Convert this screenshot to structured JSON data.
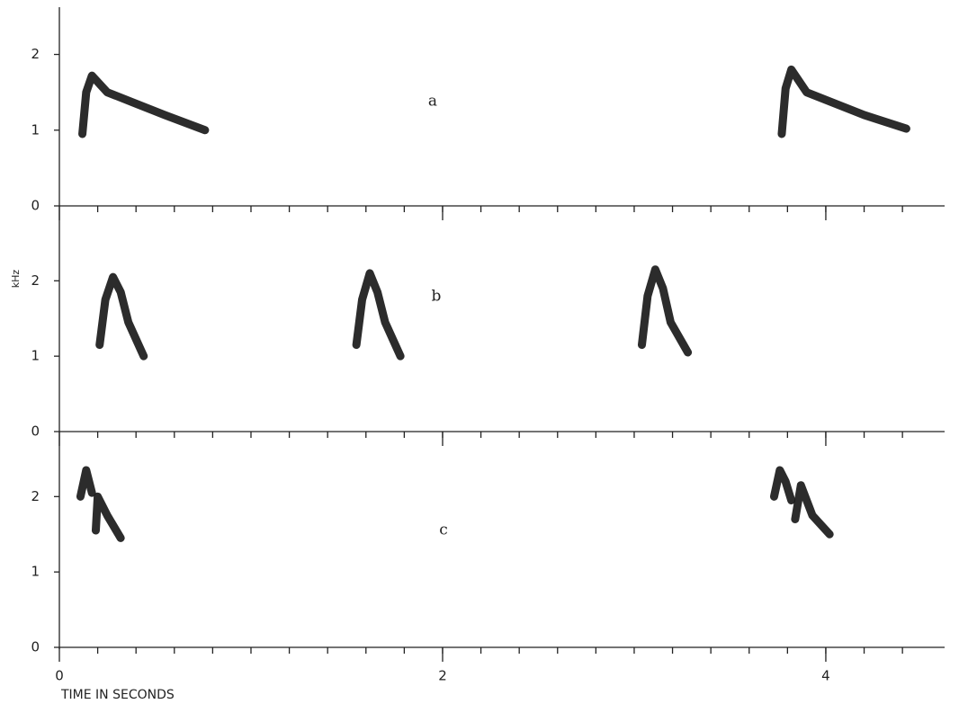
{
  "chart_data": [
    {
      "type": "line",
      "label": "a",
      "xlim": [
        0,
        4.62
      ],
      "ylim": [
        0,
        2.6
      ],
      "yticks": [
        0,
        1,
        2
      ],
      "minor_xticks": [
        0.2,
        0.4,
        0.6,
        0.8,
        1,
        1.2,
        1.4,
        1.6,
        1.8,
        2,
        2.2,
        2.4,
        2.6,
        2.8,
        3,
        3.2,
        3.4,
        3.6,
        3.8,
        4,
        4.2,
        4.4
      ],
      "color": "#1a1a1a",
      "series": [
        {
          "x": [
            0.12,
            0.14,
            0.17,
            0.25,
            0.4,
            0.55,
            0.76
          ],
          "values": [
            0.95,
            1.5,
            1.72,
            1.5,
            1.35,
            1.2,
            1.0
          ]
        },
        {
          "x": [
            3.77,
            3.79,
            3.82,
            3.9,
            4.05,
            4.2,
            4.42
          ],
          "values": [
            0.95,
            1.55,
            1.8,
            1.5,
            1.35,
            1.2,
            1.02
          ]
        }
      ]
    },
    {
      "type": "line",
      "label": "b",
      "xlim": [
        0,
        4.62
      ],
      "ylim": [
        0,
        2.6
      ],
      "yticks": [
        0,
        1,
        2
      ],
      "minor_xticks": [
        0.2,
        0.4,
        0.6,
        0.8,
        1,
        1.2,
        1.4,
        1.6,
        1.8,
        2,
        2.2,
        2.4,
        2.6,
        2.8,
        3,
        3.2,
        3.4,
        3.6,
        3.8,
        4,
        4.2,
        4.4
      ],
      "color": "#1a1a1a",
      "series": [
        {
          "x": [
            0.21,
            0.24,
            0.28,
            0.32,
            0.36,
            0.44
          ],
          "values": [
            1.15,
            1.75,
            2.05,
            1.85,
            1.45,
            1.0
          ]
        },
        {
          "x": [
            1.55,
            1.58,
            1.62,
            1.66,
            1.7,
            1.78
          ],
          "values": [
            1.15,
            1.75,
            2.1,
            1.85,
            1.45,
            1.0
          ]
        },
        {
          "x": [
            3.04,
            3.07,
            3.11,
            3.15,
            3.19,
            3.28
          ],
          "values": [
            1.15,
            1.8,
            2.15,
            1.9,
            1.45,
            1.05
          ]
        }
      ]
    },
    {
      "type": "line",
      "label": "c",
      "xlim": [
        0,
        4.62
      ],
      "ylim": [
        0,
        2.6
      ],
      "yticks": [
        0,
        1,
        2
      ],
      "minor_xticks": [
        0.2,
        0.4,
        0.6,
        0.8,
        1,
        1.2,
        1.4,
        1.6,
        1.8,
        2,
        2.2,
        2.4,
        2.6,
        2.8,
        3,
        3.2,
        3.4,
        3.6,
        3.8,
        4,
        4.2,
        4.4
      ],
      "color": "#1a1a1a",
      "series": [
        {
          "x": [
            0.11,
            0.14,
            0.17
          ],
          "values": [
            2.0,
            2.35,
            2.05
          ]
        },
        {
          "x": [
            0.19,
            0.2,
            0.25,
            0.32
          ],
          "values": [
            1.55,
            2.0,
            1.75,
            1.45
          ]
        },
        {
          "x": [
            3.73,
            3.76,
            3.79,
            3.82
          ],
          "values": [
            2.0,
            2.35,
            2.2,
            1.95
          ]
        },
        {
          "x": [
            3.84,
            3.87,
            3.93,
            4.02
          ],
          "values": [
            1.7,
            2.15,
            1.75,
            1.5
          ]
        }
      ]
    }
  ],
  "y_label": "kHz",
  "x_label": "TIME IN SECONDS",
  "xticks": [
    0,
    2,
    4
  ]
}
